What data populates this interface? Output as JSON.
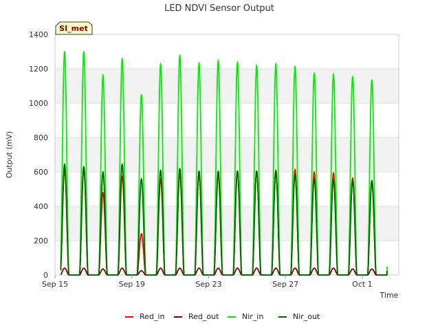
{
  "chart_data": {
    "type": "line",
    "title": "LED NDVI Sensor Output",
    "xlabel": "Time",
    "ylabel": "Output (mV)",
    "badge": "SI_met",
    "ylim": [
      0,
      1400
    ],
    "yticks": [
      0,
      200,
      400,
      600,
      800,
      1000,
      1200,
      1400
    ],
    "xlim": [
      0,
      17.9
    ],
    "xticks": [
      {
        "value": 0,
        "label": "Sep 15"
      },
      {
        "value": 4,
        "label": "Sep 19"
      },
      {
        "value": 8,
        "label": "Sep 23"
      },
      {
        "value": 12,
        "label": "Sep 27"
      },
      {
        "value": 16,
        "label": "Oct 1"
      }
    ],
    "grid": true,
    "legend_position": "bottom",
    "day_peak_offset": 0.5,
    "series": [
      {
        "name": "Red_in",
        "color": "#ff0000",
        "peaks": [
          610,
          620,
          480,
          575,
          240,
          560,
          590,
          590,
          585,
          605,
          605,
          610,
          615,
          600,
          595,
          565,
          545
        ]
      },
      {
        "name": "Red_out",
        "color": "#800000",
        "peaks": [
          40,
          40,
          35,
          40,
          25,
          40,
          40,
          40,
          40,
          40,
          40,
          40,
          40,
          40,
          40,
          35,
          35
        ]
      },
      {
        "name": "Nir_in",
        "color": "#00ee00",
        "peaks": [
          1300,
          1300,
          1165,
          1260,
          1050,
          1230,
          1280,
          1235,
          1250,
          1240,
          1220,
          1230,
          1215,
          1175,
          1170,
          1155,
          1135
        ]
      },
      {
        "name": "Nir_out",
        "color": "#006400",
        "peaks": [
          645,
          630,
          600,
          645,
          560,
          610,
          620,
          605,
          605,
          605,
          605,
          600,
          585,
          560,
          555,
          550,
          550
        ]
      }
    ]
  }
}
